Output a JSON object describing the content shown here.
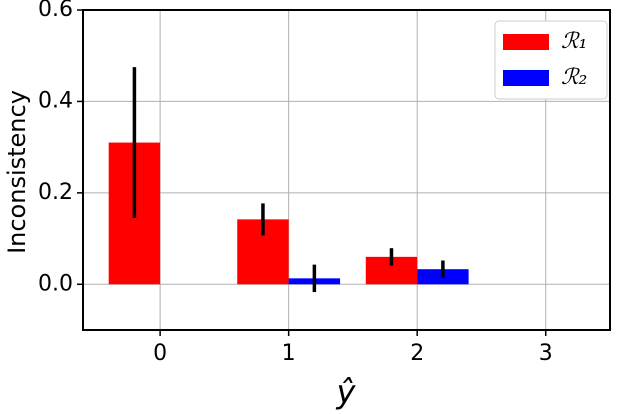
{
  "chart_data": {
    "type": "bar",
    "x": [
      0,
      1,
      2,
      3
    ],
    "xticks": [
      0,
      1,
      2,
      3
    ],
    "xlim": [
      -0.6,
      3.5
    ],
    "ylim": [
      -0.1,
      0.6
    ],
    "yticks": [
      {
        "value": 0.0,
        "label": "0.0"
      },
      {
        "value": 0.2,
        "label": "0.2"
      },
      {
        "value": 0.4,
        "label": "0.4"
      },
      {
        "value": 0.6,
        "label": "0.6"
      }
    ],
    "xlabel": "ŷ",
    "ylabel": "Inconsistency",
    "grid": true,
    "legend": "upper right",
    "series": [
      {
        "name": "ℛ₁",
        "color": "#ff0000",
        "values": [
          0.31,
          0.142,
          0.06,
          null
        ],
        "errors": [
          0.165,
          0.035,
          0.019,
          null
        ]
      },
      {
        "name": "ℛ₂",
        "color": "#0000ff",
        "values": [
          null,
          0.013,
          0.033,
          null
        ],
        "errors": [
          null,
          0.03,
          0.019,
          null
        ]
      }
    ]
  }
}
